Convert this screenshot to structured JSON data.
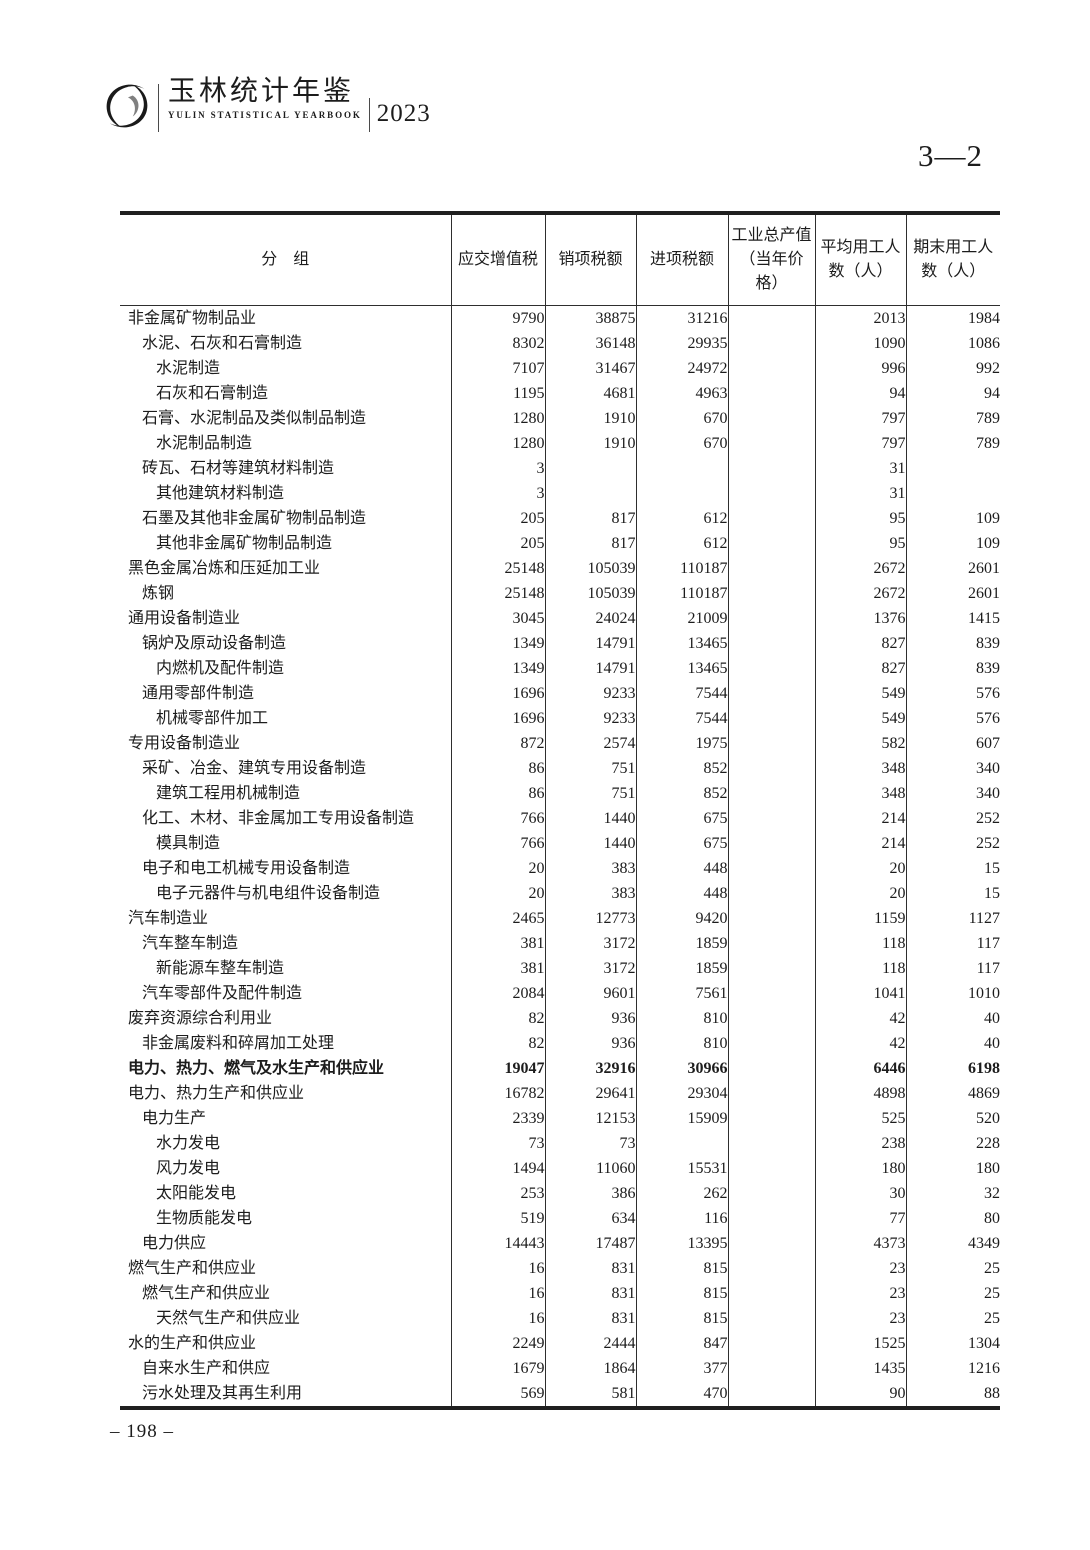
{
  "brand": {
    "title_cn": "玉林统计年鉴",
    "title_en": "YULIN STATISTICAL YEARBOOK",
    "year": "2023"
  },
  "table_number": "3—2",
  "page_number": "– 198 –",
  "table": {
    "headers": [
      "分　组",
      "应交增值税",
      "销项税额",
      "进项税额",
      "工业总产值\n（当年价格）",
      "平均用工人\n数（人）",
      "期末用工人\n数（人）"
    ],
    "column_names": [
      "vat-payable",
      "output-tax",
      "input-tax",
      "gross-output-value",
      "avg-workers",
      "end-workers"
    ],
    "rows": [
      {
        "label": "非金属矿物制品业",
        "indent": 0,
        "bold": false,
        "values": [
          "9790",
          "38875",
          "31216",
          "",
          "2013",
          "1984"
        ]
      },
      {
        "label": "水泥、石灰和石膏制造",
        "indent": 1,
        "bold": false,
        "values": [
          "8302",
          "36148",
          "29935",
          "",
          "1090",
          "1086"
        ]
      },
      {
        "label": "水泥制造",
        "indent": 2,
        "bold": false,
        "values": [
          "7107",
          "31467",
          "24972",
          "",
          "996",
          "992"
        ]
      },
      {
        "label": "石灰和石膏制造",
        "indent": 2,
        "bold": false,
        "values": [
          "1195",
          "4681",
          "4963",
          "",
          "94",
          "94"
        ]
      },
      {
        "label": "石膏、水泥制品及类似制品制造",
        "indent": 1,
        "bold": false,
        "values": [
          "1280",
          "1910",
          "670",
          "",
          "797",
          "789"
        ]
      },
      {
        "label": "水泥制品制造",
        "indent": 2,
        "bold": false,
        "values": [
          "1280",
          "1910",
          "670",
          "",
          "797",
          "789"
        ]
      },
      {
        "label": "砖瓦、石材等建筑材料制造",
        "indent": 1,
        "bold": false,
        "values": [
          "3",
          "",
          "",
          "",
          "31",
          ""
        ]
      },
      {
        "label": "其他建筑材料制造",
        "indent": 2,
        "bold": false,
        "values": [
          "3",
          "",
          "",
          "",
          "31",
          ""
        ]
      },
      {
        "label": "石墨及其他非金属矿物制品制造",
        "indent": 1,
        "bold": false,
        "values": [
          "205",
          "817",
          "612",
          "",
          "95",
          "109"
        ]
      },
      {
        "label": "其他非金属矿物制品制造",
        "indent": 2,
        "bold": false,
        "values": [
          "205",
          "817",
          "612",
          "",
          "95",
          "109"
        ]
      },
      {
        "label": "黑色金属冶炼和压延加工业",
        "indent": 0,
        "bold": false,
        "values": [
          "25148",
          "105039",
          "110187",
          "",
          "2672",
          "2601"
        ]
      },
      {
        "label": "炼钢",
        "indent": 1,
        "bold": false,
        "values": [
          "25148",
          "105039",
          "110187",
          "",
          "2672",
          "2601"
        ]
      },
      {
        "label": "通用设备制造业",
        "indent": 0,
        "bold": false,
        "values": [
          "3045",
          "24024",
          "21009",
          "",
          "1376",
          "1415"
        ]
      },
      {
        "label": "锅炉及原动设备制造",
        "indent": 1,
        "bold": false,
        "values": [
          "1349",
          "14791",
          "13465",
          "",
          "827",
          "839"
        ]
      },
      {
        "label": "内燃机及配件制造",
        "indent": 2,
        "bold": false,
        "values": [
          "1349",
          "14791",
          "13465",
          "",
          "827",
          "839"
        ]
      },
      {
        "label": "通用零部件制造",
        "indent": 1,
        "bold": false,
        "values": [
          "1696",
          "9233",
          "7544",
          "",
          "549",
          "576"
        ]
      },
      {
        "label": "机械零部件加工",
        "indent": 2,
        "bold": false,
        "values": [
          "1696",
          "9233",
          "7544",
          "",
          "549",
          "576"
        ]
      },
      {
        "label": "专用设备制造业",
        "indent": 0,
        "bold": false,
        "values": [
          "872",
          "2574",
          "1975",
          "",
          "582",
          "607"
        ]
      },
      {
        "label": "采矿、冶金、建筑专用设备制造",
        "indent": 1,
        "bold": false,
        "values": [
          "86",
          "751",
          "852",
          "",
          "348",
          "340"
        ]
      },
      {
        "label": "建筑工程用机械制造",
        "indent": 2,
        "bold": false,
        "values": [
          "86",
          "751",
          "852",
          "",
          "348",
          "340"
        ]
      },
      {
        "label": "化工、木材、非金属加工专用设备制造",
        "indent": 1,
        "bold": false,
        "values": [
          "766",
          "1440",
          "675",
          "",
          "214",
          "252"
        ]
      },
      {
        "label": "模具制造",
        "indent": 2,
        "bold": false,
        "values": [
          "766",
          "1440",
          "675",
          "",
          "214",
          "252"
        ]
      },
      {
        "label": "电子和电工机械专用设备制造",
        "indent": 1,
        "bold": false,
        "values": [
          "20",
          "383",
          "448",
          "",
          "20",
          "15"
        ]
      },
      {
        "label": "电子元器件与机电组件设备制造",
        "indent": 2,
        "bold": false,
        "values": [
          "20",
          "383",
          "448",
          "",
          "20",
          "15"
        ]
      },
      {
        "label": "汽车制造业",
        "indent": 0,
        "bold": false,
        "values": [
          "2465",
          "12773",
          "9420",
          "",
          "1159",
          "1127"
        ]
      },
      {
        "label": "汽车整车制造",
        "indent": 1,
        "bold": false,
        "values": [
          "381",
          "3172",
          "1859",
          "",
          "118",
          "117"
        ]
      },
      {
        "label": "新能源车整车制造",
        "indent": 2,
        "bold": false,
        "values": [
          "381",
          "3172",
          "1859",
          "",
          "118",
          "117"
        ]
      },
      {
        "label": "汽车零部件及配件制造",
        "indent": 1,
        "bold": false,
        "values": [
          "2084",
          "9601",
          "7561",
          "",
          "1041",
          "1010"
        ]
      },
      {
        "label": "废弃资源综合利用业",
        "indent": 0,
        "bold": false,
        "values": [
          "82",
          "936",
          "810",
          "",
          "42",
          "40"
        ]
      },
      {
        "label": "非金属废料和碎屑加工处理",
        "indent": 1,
        "bold": false,
        "values": [
          "82",
          "936",
          "810",
          "",
          "42",
          "40"
        ]
      },
      {
        "label": "电力、热力、燃气及水生产和供应业",
        "indent": 0,
        "bold": true,
        "values": [
          "19047",
          "32916",
          "30966",
          "",
          "6446",
          "6198"
        ]
      },
      {
        "label": "电力、热力生产和供应业",
        "indent": 0,
        "bold": false,
        "values": [
          "16782",
          "29641",
          "29304",
          "",
          "4898",
          "4869"
        ]
      },
      {
        "label": "电力生产",
        "indent": 1,
        "bold": false,
        "values": [
          "2339",
          "12153",
          "15909",
          "",
          "525",
          "520"
        ]
      },
      {
        "label": "水力发电",
        "indent": 2,
        "bold": false,
        "values": [
          "73",
          "73",
          "",
          "",
          "238",
          "228"
        ]
      },
      {
        "label": "风力发电",
        "indent": 2,
        "bold": false,
        "values": [
          "1494",
          "11060",
          "15531",
          "",
          "180",
          "180"
        ]
      },
      {
        "label": "太阳能发电",
        "indent": 2,
        "bold": false,
        "values": [
          "253",
          "386",
          "262",
          "",
          "30",
          "32"
        ]
      },
      {
        "label": "生物质能发电",
        "indent": 2,
        "bold": false,
        "values": [
          "519",
          "634",
          "116",
          "",
          "77",
          "80"
        ]
      },
      {
        "label": "电力供应",
        "indent": 1,
        "bold": false,
        "values": [
          "14443",
          "17487",
          "13395",
          "",
          "4373",
          "4349"
        ]
      },
      {
        "label": "燃气生产和供应业",
        "indent": 0,
        "bold": false,
        "values": [
          "16",
          "831",
          "815",
          "",
          "23",
          "25"
        ]
      },
      {
        "label": "燃气生产和供应业",
        "indent": 1,
        "bold": false,
        "values": [
          "16",
          "831",
          "815",
          "",
          "23",
          "25"
        ]
      },
      {
        "label": "天然气生产和供应业",
        "indent": 2,
        "bold": false,
        "values": [
          "16",
          "831",
          "815",
          "",
          "23",
          "25"
        ]
      },
      {
        "label": "水的生产和供应业",
        "indent": 0,
        "bold": false,
        "values": [
          "2249",
          "2444",
          "847",
          "",
          "1525",
          "1304"
        ]
      },
      {
        "label": "自来水生产和供应",
        "indent": 1,
        "bold": false,
        "values": [
          "1679",
          "1864",
          "377",
          "",
          "1435",
          "1216"
        ]
      },
      {
        "label": "污水处理及其再生利用",
        "indent": 1,
        "bold": false,
        "values": [
          "569",
          "581",
          "470",
          "",
          "90",
          "88"
        ]
      }
    ]
  }
}
